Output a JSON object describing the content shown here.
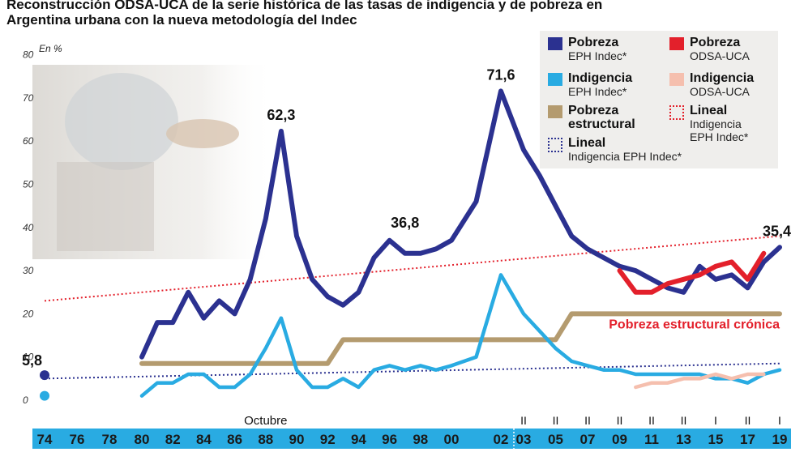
{
  "title_line1": "Reconstrucción ODSA-UCA de la serie histórica de las tasas de indigencia y de pobreza en",
  "title_line2": "Argentina urbana con la nueva metodología del Indec",
  "chart_data": {
    "type": "line",
    "title": "Reconstrucción ODSA-UCA de la serie histórica de las tasas de indigencia y de pobreza en Argentina urbana con la nueva metodología del Indec",
    "ylabel": "En %",
    "ylim": [
      0,
      80
    ],
    "yticks": [
      0,
      10,
      20,
      30,
      40,
      50,
      60,
      70,
      80
    ],
    "x_categories": [
      "74",
      "76",
      "78",
      "80",
      "82",
      "84",
      "86",
      "88",
      "90",
      "92",
      "94",
      "96",
      "98",
      "00",
      "02",
      "03",
      "05",
      "07",
      "09",
      "11",
      "13",
      "15",
      "17",
      "19"
    ],
    "x_sublabels": [
      "",
      "",
      "",
      "",
      "",
      "",
      "",
      "Octubre",
      "",
      "",
      "",
      "",
      "",
      "",
      "",
      "II",
      "II",
      "II",
      "II",
      "II",
      "II",
      "I",
      "II",
      "I"
    ],
    "series": [
      {
        "name": "Pobreza EPH Indec*",
        "color": "#2b3190",
        "x": [
          80,
          81,
          82,
          83,
          84,
          85,
          86,
          87,
          88,
          89,
          90,
          91,
          92,
          93,
          94,
          95,
          96,
          97,
          98,
          99,
          100,
          101,
          102,
          103,
          104,
          105,
          106,
          107,
          108,
          109,
          110,
          111,
          112,
          113,
          114,
          115,
          116,
          117,
          118,
          119
        ],
        "y": [
          10,
          18,
          18,
          25,
          19,
          23,
          20,
          28,
          42,
          62.3,
          38,
          28,
          24,
          22,
          25,
          33,
          37,
          34,
          34,
          35,
          37,
          46,
          71.6,
          58,
          52,
          45,
          38,
          35,
          33,
          31,
          30,
          28,
          26,
          25,
          31,
          28,
          29,
          26,
          32,
          35.4
        ]
      },
      {
        "name": "Indigencia EPH Indec*",
        "color": "#29abe2",
        "x": [
          80,
          81,
          82,
          83,
          84,
          85,
          86,
          87,
          88,
          89,
          90,
          91,
          92,
          93,
          94,
          95,
          96,
          97,
          98,
          99,
          100,
          101,
          102,
          103,
          104,
          105,
          106,
          107,
          108,
          109,
          110,
          111,
          112,
          113,
          114,
          115,
          116,
          117,
          118,
          119
        ],
        "y": [
          1,
          4,
          4,
          6,
          6,
          3,
          3,
          6,
          12,
          19,
          7,
          3,
          3,
          5,
          3,
          7,
          8,
          7,
          8,
          7,
          8,
          10,
          29,
          20,
          16,
          12,
          9,
          8,
          7,
          7,
          6,
          6,
          6,
          6,
          6,
          5,
          5,
          4,
          6,
          7
        ]
      },
      {
        "name": "Pobreza estructural",
        "color": "#b49b6f",
        "x": [
          80,
          92,
          93,
          105,
          106,
          119
        ],
        "y": [
          8.5,
          8.5,
          14,
          14,
          20,
          20
        ]
      },
      {
        "name": "Pobreza ODSA-UCA",
        "color": "#e3202b",
        "x": [
          109,
          110,
          111,
          112,
          113,
          114,
          115,
          116,
          117,
          118
        ],
        "y": [
          30,
          25,
          25,
          27,
          28,
          29,
          31,
          32,
          28,
          34
        ]
      },
      {
        "name": "Indigencia ODSA-UCA",
        "color": "#f5bfae",
        "x": [
          110,
          111,
          112,
          113,
          114,
          115,
          116,
          117,
          118
        ],
        "y": [
          3,
          4,
          4,
          5,
          5,
          6,
          5,
          6,
          6
        ]
      }
    ],
    "trendlines": [
      {
        "name": "Lineal Indigencia EPH Indec*",
        "color": "#2b3190",
        "x": [
          74,
          119
        ],
        "y": [
          5,
          8.5
        ]
      },
      {
        "name": "Lineal Indigencia EPH Indec*",
        "color": "#e3202b",
        "x": [
          74,
          119
        ],
        "y": [
          23,
          38
        ]
      }
    ],
    "extra_points": [
      {
        "x": 74,
        "y": 5.8,
        "color": "#2b3190"
      },
      {
        "x": 74,
        "y": 1,
        "color": "#29abe2"
      }
    ],
    "annotations": [
      {
        "text": "5,8",
        "x": 74,
        "y": 5.8
      },
      {
        "text": "62,3",
        "x": 89,
        "y": 62.3
      },
      {
        "text": "36,8",
        "x": 97,
        "y": 37
      },
      {
        "text": "71,6",
        "x": 102,
        "y": 71.6
      },
      {
        "text": "35,4",
        "x": 119,
        "y": 35.4
      },
      {
        "text": "Pobreza estructural crónica",
        "x": 119,
        "y": 20
      }
    ]
  },
  "legend": [
    {
      "key": "pobreza_eph",
      "title": "Pobreza",
      "sub": "EPH Indec*",
      "color": "#2b3190",
      "style": "solid"
    },
    {
      "key": "pobreza_odsa",
      "title": "Pobreza",
      "sub": "ODSA-UCA",
      "color": "#e3202b",
      "style": "solid"
    },
    {
      "key": "indigencia_eph",
      "title": "Indigencia",
      "sub": "EPH Indec*",
      "color": "#29abe2",
      "style": "solid"
    },
    {
      "key": "indigencia_odsa",
      "title": "Indigencia",
      "sub": "ODSA-UCA",
      "color": "#f5bfae",
      "style": "solid"
    },
    {
      "key": "pobreza_estructural",
      "title": "Pobreza",
      "title2": "estructural",
      "color": "#b49b6f",
      "style": "solid"
    },
    {
      "key": "lineal_red",
      "title": "Lineal",
      "sub": "Indigencia",
      "sub2": "EPH Indec*",
      "color": "#e3202b",
      "style": "dotted"
    },
    {
      "key": "lineal_blue",
      "title": "Lineal",
      "sub": "Indigencia EPH Indec*",
      "color": "#2b3190",
      "style": "dotted"
    }
  ]
}
